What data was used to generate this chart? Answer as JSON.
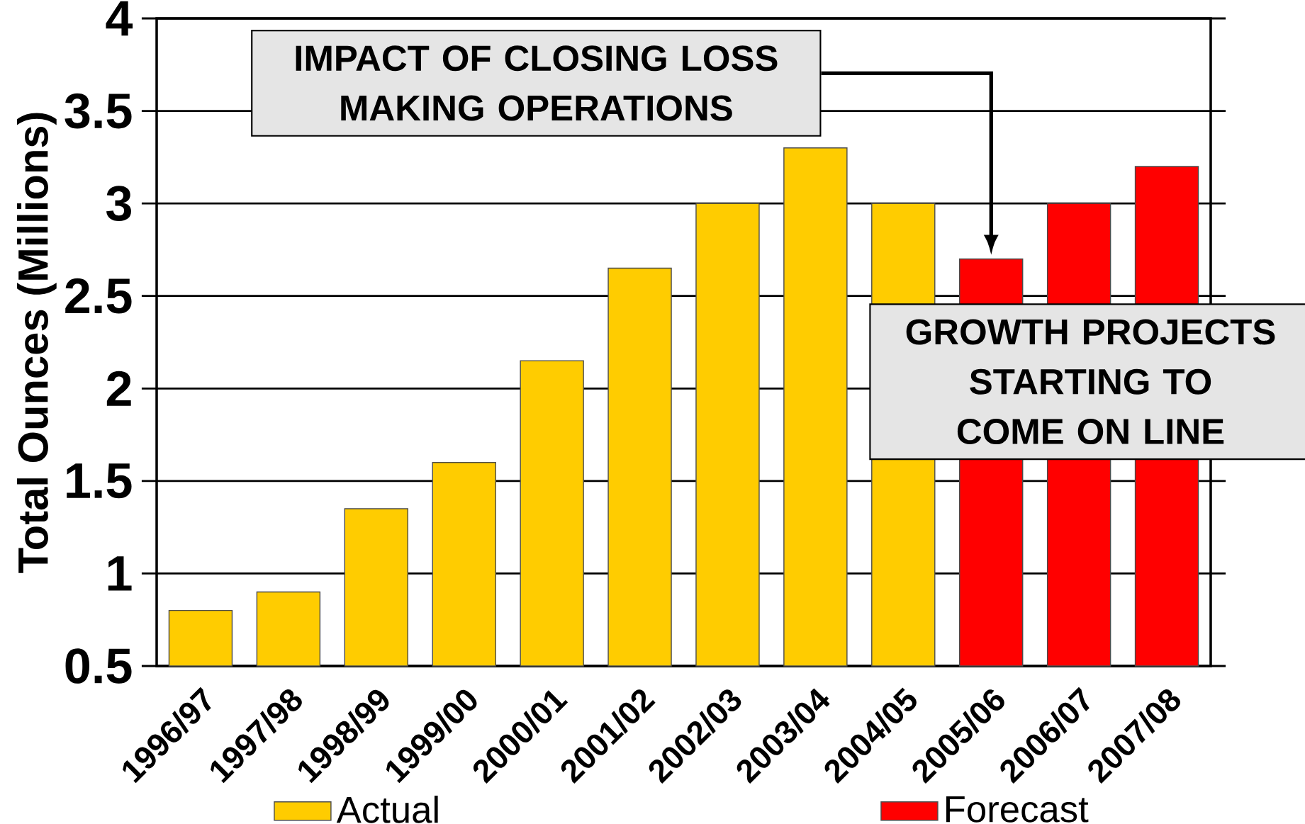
{
  "chart_data": {
    "type": "bar",
    "ylabel": "Total Ounces (Millions)",
    "categories": [
      "1996/97",
      "1997/98",
      "1998/99",
      "1999/00",
      "2000/01",
      "2001/02",
      "2002/03",
      "2003/04",
      "2004/05",
      "2005/06",
      "2006/07",
      "2007/08"
    ],
    "series": [
      {
        "name": "Actual",
        "color": "#ffcc00",
        "values": [
          0.8,
          0.9,
          1.35,
          1.6,
          2.15,
          2.65,
          3.0,
          3.3,
          3.0,
          null,
          null,
          null
        ]
      },
      {
        "name": "Forecast",
        "color": "#ff0000",
        "values": [
          null,
          null,
          null,
          null,
          null,
          null,
          null,
          null,
          null,
          2.7,
          3.0,
          3.2
        ]
      }
    ],
    "ylim": [
      0.5,
      4
    ],
    "yticks": [
      0.5,
      1,
      1.5,
      2,
      2.5,
      3,
      3.5,
      4
    ],
    "grid": "y",
    "legend": "bottom",
    "annotations": [
      "IMPACT OF CLOSING LOSS MAKING OPERATIONS",
      "GROWTH PROJECTS STARTING TO COME ON LINE"
    ]
  }
}
